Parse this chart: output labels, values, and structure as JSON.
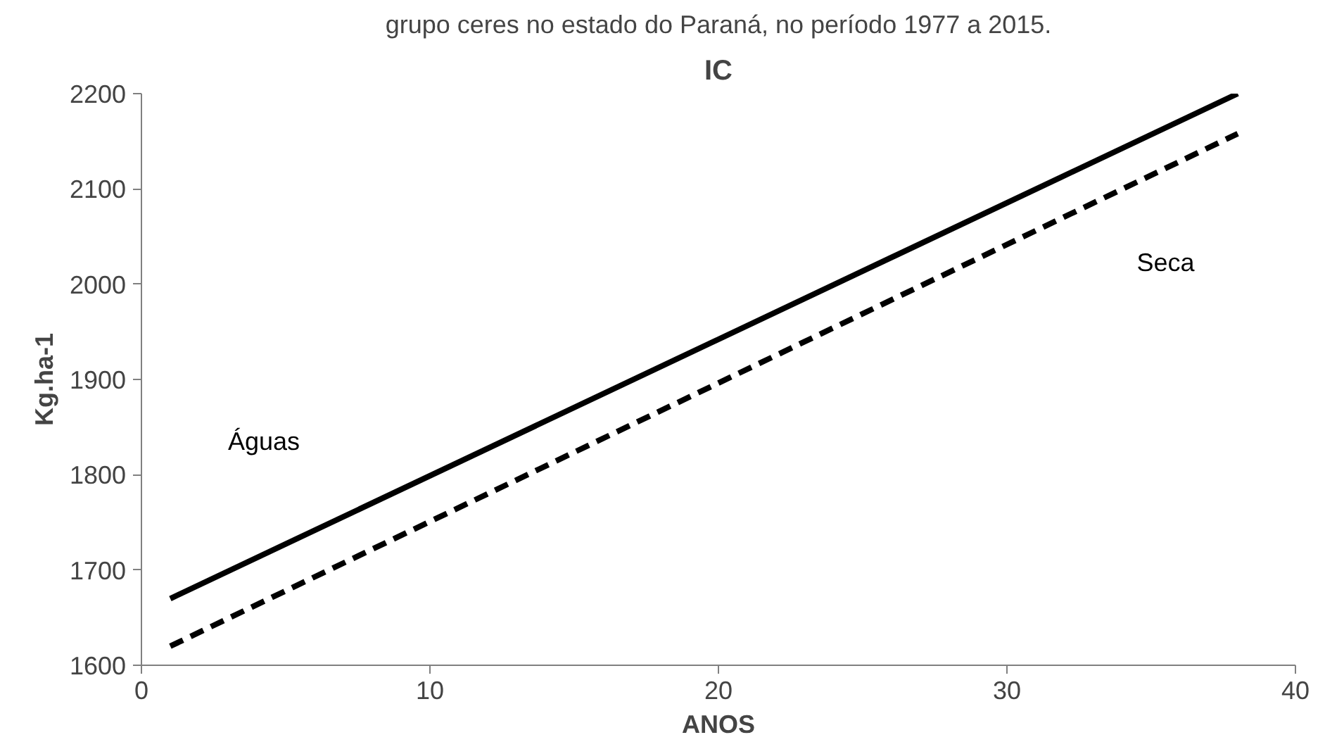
{
  "chart_data": {
    "type": "line",
    "subtitle": "grupo ceres no estado do Paraná, no período 1977 a 2015.",
    "title": "IC",
    "xlabel": "ANOS",
    "ylabel": "Kg.ha-1",
    "xlim": [
      0,
      40
    ],
    "xticks": [
      0,
      10,
      20,
      30,
      40
    ],
    "ylim": [
      1600,
      2200
    ],
    "yticks": [
      1600,
      1700,
      1800,
      1900,
      2000,
      2100,
      2200
    ],
    "grid": false,
    "x": [
      1,
      38
    ],
    "series": [
      {
        "name": "Águas",
        "color": "#000000",
        "line_style": "solid",
        "values": [
          1670,
          2200
        ]
      },
      {
        "name": "Seca",
        "color": "#000000",
        "line_style": "dashed",
        "values": [
          1620,
          2158
        ]
      }
    ]
  }
}
